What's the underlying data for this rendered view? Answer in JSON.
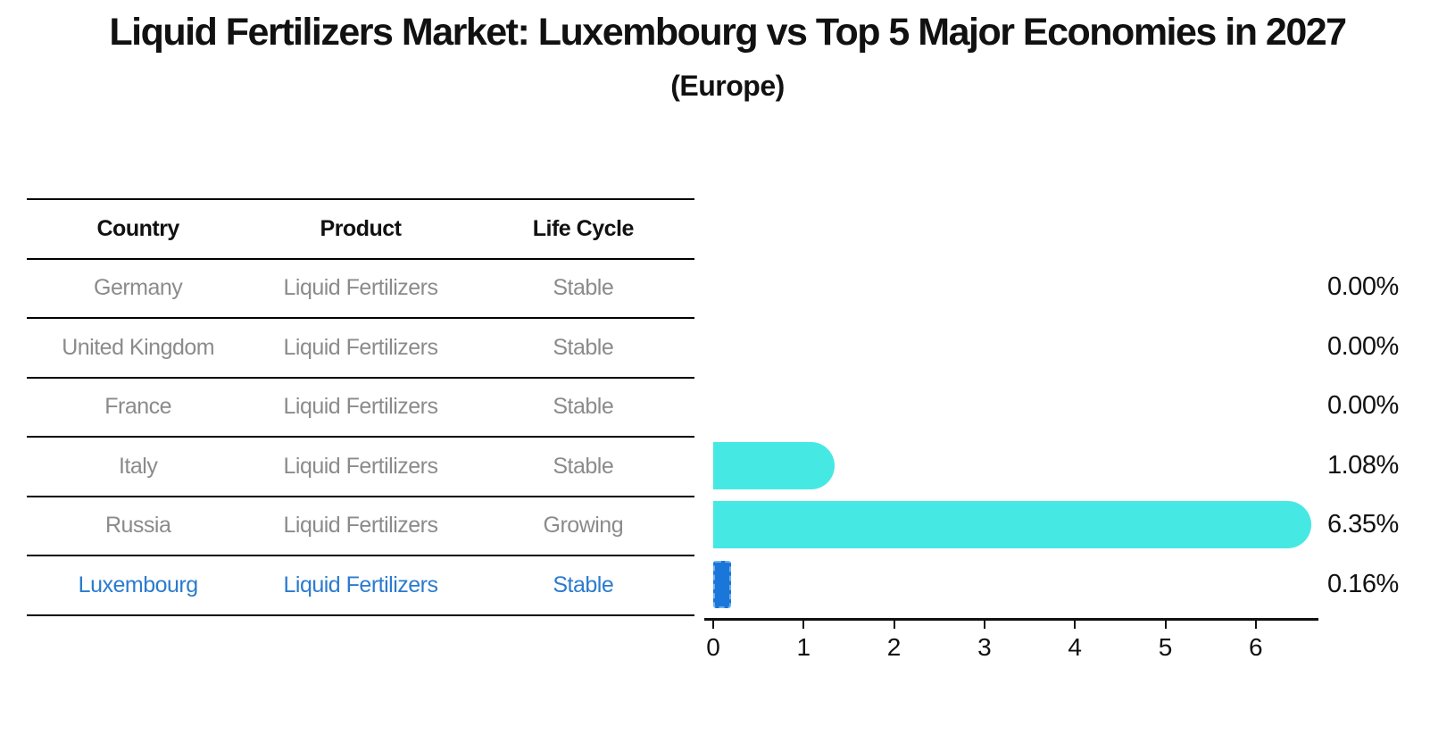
{
  "title": "Liquid Fertilizers Market: Luxembourg vs Top 5 Major Economies in 2027",
  "subtitle": "(Europe)",
  "colors": {
    "bar_default": "#46e8e4",
    "bar_highlight": "#1b76da",
    "row_text_gray": "#8b8b8b",
    "row_text_highlight_blue": "#2b7bce",
    "text_black": "#111111"
  },
  "table": {
    "columns": [
      "Country",
      "Product",
      "Life Cycle"
    ],
    "rows": [
      {
        "country": "Germany",
        "product": "Liquid Fertilizers",
        "life_cycle": "Stable",
        "highlight": false
      },
      {
        "country": "United Kingdom",
        "product": "Liquid Fertilizers",
        "life_cycle": "Stable",
        "highlight": false
      },
      {
        "country": "France",
        "product": "Liquid Fertilizers",
        "life_cycle": "Stable",
        "highlight": false
      },
      {
        "country": "Italy",
        "product": "Liquid Fertilizers",
        "life_cycle": "Stable",
        "highlight": false
      },
      {
        "country": "Russia",
        "product": "Liquid Fertilizers",
        "life_cycle": "Growing",
        "highlight": false
      },
      {
        "country": "Luxembourg",
        "product": "Liquid Fertilizers",
        "life_cycle": "Stable",
        "highlight": true
      }
    ]
  },
  "chart_data": {
    "type": "bar",
    "orientation": "horizontal",
    "title": "Liquid Fertilizers Market: Luxembourg vs Top 5 Major Economies in 2027 (Europe)",
    "categories": [
      "Germany",
      "United Kingdom",
      "France",
      "Italy",
      "Russia",
      "Luxembourg"
    ],
    "values": [
      0.0,
      0.0,
      0.0,
      1.08,
      6.35,
      0.16
    ],
    "value_labels": [
      "0.00%",
      "0.00%",
      "0.00%",
      "1.08%",
      "6.35%",
      "0.16%"
    ],
    "highlight_index": 5,
    "x_ticks": [
      0,
      1,
      2,
      3,
      4,
      5,
      6
    ],
    "xlim": [
      0,
      6.7
    ],
    "xlabel": "",
    "ylabel": "",
    "grid": false,
    "legend": false
  }
}
